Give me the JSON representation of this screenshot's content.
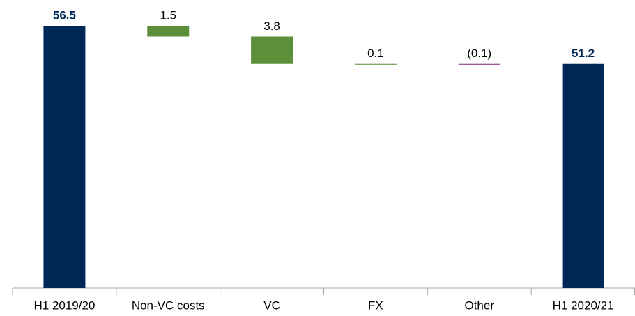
{
  "chart_data": {
    "type": "waterfall",
    "categories": [
      "H1 2019/20",
      "Non-VC costs",
      "VC",
      "FX",
      "Other",
      "H1 2020/21"
    ],
    "values": [
      56.5,
      1.5,
      3.8,
      0.1,
      -0.1,
      51.2
    ],
    "value_labels": [
      "56.5",
      "1.5",
      "3.8",
      "0.1",
      "(0.1)",
      "51.2"
    ],
    "kinds": [
      "total",
      "decrease",
      "decrease",
      "decrease",
      "decrease",
      "total"
    ],
    "colors": [
      "#002856",
      "#5b8f3a",
      "#5b8f3a",
      "#5b8f3a",
      "#7b2c7e",
      "#002856"
    ],
    "ylim": [
      20,
      56.5
    ]
  }
}
